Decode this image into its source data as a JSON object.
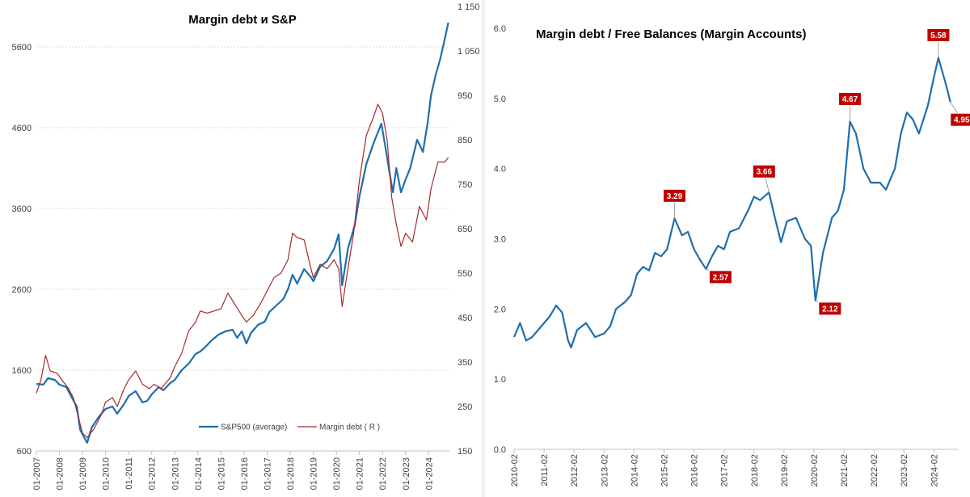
{
  "chart_data": [
    {
      "type": "line",
      "title": "Margin debt и S&P",
      "xlabel": "",
      "ylabel": "",
      "grid": true,
      "legend_position": "bottom-right",
      "x_tick_labels": [
        "01-2007",
        "01-2008",
        "01-2009",
        "01-2010",
        "01-2011",
        "01-2012",
        "01-2013",
        "01-2014",
        "01-2015",
        "01-2016",
        "01-2017",
        "01-2018",
        "01-2019",
        "01-2020",
        "01-2021",
        "01-2022",
        "01-2023",
        "01-2024"
      ],
      "x_range": [
        2007.0,
        2024.9
      ],
      "y_left": {
        "ticks": [
          "600",
          "1600",
          "2600",
          "3600",
          "4600",
          "5600"
        ],
        "range": [
          600,
          6100
        ]
      },
      "y_right": {
        "ticks": [
          "150",
          "250",
          "350",
          "450",
          "550",
          "650",
          "750",
          "850",
          "950",
          "1 050",
          "1 150"
        ],
        "range": [
          150,
          1150
        ]
      },
      "series": [
        {
          "name": "S&P500 (average)",
          "axis": "left",
          "color": "#1f6ead",
          "points": [
            [
              2007.0,
              1430
            ],
            [
              2007.3,
              1420
            ],
            [
              2007.5,
              1500
            ],
            [
              2007.8,
              1480
            ],
            [
              2008.0,
              1420
            ],
            [
              2008.3,
              1390
            ],
            [
              2008.5,
              1280
            ],
            [
              2008.75,
              1150
            ],
            [
              2008.9,
              860
            ],
            [
              2009.2,
              700
            ],
            [
              2009.4,
              890
            ],
            [
              2009.7,
              1020
            ],
            [
              2010.0,
              1120
            ],
            [
              2010.3,
              1150
            ],
            [
              2010.5,
              1060
            ],
            [
              2010.8,
              1180
            ],
            [
              2011.0,
              1280
            ],
            [
              2011.3,
              1340
            ],
            [
              2011.6,
              1200
            ],
            [
              2011.8,
              1220
            ],
            [
              2012.0,
              1300
            ],
            [
              2012.3,
              1390
            ],
            [
              2012.5,
              1350
            ],
            [
              2012.8,
              1440
            ],
            [
              2013.0,
              1480
            ],
            [
              2013.3,
              1600
            ],
            [
              2013.6,
              1680
            ],
            [
              2013.9,
              1800
            ],
            [
              2014.1,
              1830
            ],
            [
              2014.3,
              1880
            ],
            [
              2014.6,
              1970
            ],
            [
              2014.9,
              2040
            ],
            [
              2015.2,
              2080
            ],
            [
              2015.5,
              2100
            ],
            [
              2015.7,
              2000
            ],
            [
              2015.9,
              2080
            ],
            [
              2016.1,
              1930
            ],
            [
              2016.3,
              2060
            ],
            [
              2016.6,
              2160
            ],
            [
              2016.9,
              2200
            ],
            [
              2017.1,
              2320
            ],
            [
              2017.4,
              2400
            ],
            [
              2017.7,
              2480
            ],
            [
              2017.9,
              2600
            ],
            [
              2018.1,
              2780
            ],
            [
              2018.3,
              2670
            ],
            [
              2018.6,
              2850
            ],
            [
              2018.9,
              2750
            ],
            [
              2019.0,
              2700
            ],
            [
              2019.3,
              2880
            ],
            [
              2019.6,
              2950
            ],
            [
              2019.9,
              3100
            ],
            [
              2020.1,
              3280
            ],
            [
              2020.25,
              2650
            ],
            [
              2020.5,
              3100
            ],
            [
              2020.8,
              3400
            ],
            [
              2021.0,
              3750
            ],
            [
              2021.3,
              4150
            ],
            [
              2021.6,
              4400
            ],
            [
              2021.95,
              4650
            ],
            [
              2022.1,
              4400
            ],
            [
              2022.3,
              4050
            ],
            [
              2022.45,
              3800
            ],
            [
              2022.6,
              4100
            ],
            [
              2022.8,
              3800
            ],
            [
              2023.0,
              3960
            ],
            [
              2023.2,
              4100
            ],
            [
              2023.5,
              4450
            ],
            [
              2023.75,
              4300
            ],
            [
              2023.95,
              4650
            ],
            [
              2024.1,
              5000
            ],
            [
              2024.3,
              5250
            ],
            [
              2024.5,
              5450
            ],
            [
              2024.7,
              5700
            ],
            [
              2024.85,
              5900
            ]
          ]
        },
        {
          "name": "Margin debt ( R )",
          "axis": "right",
          "color": "#a52a2a",
          "points": [
            [
              2007.0,
              280
            ],
            [
              2007.2,
              310
            ],
            [
              2007.4,
              365
            ],
            [
              2007.6,
              330
            ],
            [
              2007.9,
              325
            ],
            [
              2008.1,
              310
            ],
            [
              2008.4,
              290
            ],
            [
              2008.6,
              270
            ],
            [
              2008.8,
              230
            ],
            [
              2009.0,
              190
            ],
            [
              2009.2,
              180
            ],
            [
              2009.5,
              200
            ],
            [
              2009.8,
              230
            ],
            [
              2010.0,
              260
            ],
            [
              2010.3,
              270
            ],
            [
              2010.5,
              250
            ],
            [
              2010.8,
              290
            ],
            [
              2011.0,
              310
            ],
            [
              2011.3,
              330
            ],
            [
              2011.6,
              300
            ],
            [
              2011.9,
              290
            ],
            [
              2012.1,
              300
            ],
            [
              2012.4,
              290
            ],
            [
              2012.8,
              315
            ],
            [
              2013.0,
              340
            ],
            [
              2013.3,
              370
            ],
            [
              2013.6,
              420
            ],
            [
              2013.9,
              440
            ],
            [
              2014.1,
              465
            ],
            [
              2014.4,
              460
            ],
            [
              2014.7,
              465
            ],
            [
              2015.0,
              470
            ],
            [
              2015.3,
              505
            ],
            [
              2015.6,
              480
            ],
            [
              2015.9,
              455
            ],
            [
              2016.1,
              440
            ],
            [
              2016.4,
              455
            ],
            [
              2016.7,
              480
            ],
            [
              2017.0,
              510
            ],
            [
              2017.3,
              540
            ],
            [
              2017.6,
              550
            ],
            [
              2017.9,
              580
            ],
            [
              2018.1,
              640
            ],
            [
              2018.3,
              630
            ],
            [
              2018.6,
              625
            ],
            [
              2018.9,
              560
            ],
            [
              2019.0,
              540
            ],
            [
              2019.3,
              570
            ],
            [
              2019.6,
              560
            ],
            [
              2019.9,
              580
            ],
            [
              2020.1,
              560
            ],
            [
              2020.25,
              475
            ],
            [
              2020.5,
              560
            ],
            [
              2020.75,
              640
            ],
            [
              2021.0,
              760
            ],
            [
              2021.3,
              860
            ],
            [
              2021.6,
              900
            ],
            [
              2021.8,
              930
            ],
            [
              2022.0,
              910
            ],
            [
              2022.2,
              850
            ],
            [
              2022.4,
              720
            ],
            [
              2022.6,
              660
            ],
            [
              2022.8,
              610
            ],
            [
              2023.0,
              640
            ],
            [
              2023.3,
              620
            ],
            [
              2023.6,
              700
            ],
            [
              2023.9,
              670
            ],
            [
              2024.1,
              740
            ],
            [
              2024.4,
              800
            ],
            [
              2024.7,
              800
            ],
            [
              2024.85,
              810
            ]
          ]
        }
      ]
    },
    {
      "type": "line",
      "title": "Margin debt / Free Balances (Margin Accounts)",
      "xlabel": "",
      "ylabel": "",
      "grid": false,
      "legend_position": "none",
      "x_tick_labels": [
        "2010-02",
        "2011-02",
        "2012-02",
        "2013-02",
        "2014-02",
        "2015-02",
        "2016-02",
        "2017-02",
        "2018-02",
        "2019-02",
        "2020-02",
        "2021-02",
        "2022-02",
        "2023-02",
        "2024-02"
      ],
      "x_range": [
        2010.1,
        2024.9
      ],
      "y_left": {
        "ticks": [
          "0.0",
          "1.0",
          "2.0",
          "3.0",
          "4.0",
          "5.0",
          "6.0"
        ],
        "range": [
          0,
          6
        ]
      },
      "series": [
        {
          "name": "Margin debt / Free Balances",
          "axis": "left",
          "color": "#1f6ead",
          "points": [
            [
              2010.1,
              1.6
            ],
            [
              2010.3,
              1.8
            ],
            [
              2010.5,
              1.55
            ],
            [
              2010.7,
              1.6
            ],
            [
              2011.0,
              1.75
            ],
            [
              2011.3,
              1.9
            ],
            [
              2011.5,
              2.05
            ],
            [
              2011.7,
              1.95
            ],
            [
              2011.9,
              1.55
            ],
            [
              2012.0,
              1.45
            ],
            [
              2012.2,
              1.7
            ],
            [
              2012.5,
              1.8
            ],
            [
              2012.8,
              1.6
            ],
            [
              2013.1,
              1.65
            ],
            [
              2013.3,
              1.75
            ],
            [
              2013.5,
              2.0
            ],
            [
              2013.8,
              2.1
            ],
            [
              2014.0,
              2.2
            ],
            [
              2014.2,
              2.5
            ],
            [
              2014.4,
              2.6
            ],
            [
              2014.6,
              2.55
            ],
            [
              2014.8,
              2.8
            ],
            [
              2015.0,
              2.75
            ],
            [
              2015.2,
              2.85
            ],
            [
              2015.4,
              3.2
            ],
            [
              2015.45,
              3.29
            ],
            [
              2015.7,
              3.05
            ],
            [
              2015.9,
              3.1
            ],
            [
              2016.1,
              2.85
            ],
            [
              2016.3,
              2.7
            ],
            [
              2016.5,
              2.57
            ],
            [
              2016.7,
              2.75
            ],
            [
              2016.9,
              2.9
            ],
            [
              2017.1,
              2.85
            ],
            [
              2017.3,
              3.1
            ],
            [
              2017.6,
              3.15
            ],
            [
              2017.9,
              3.4
            ],
            [
              2018.1,
              3.6
            ],
            [
              2018.3,
              3.55
            ],
            [
              2018.6,
              3.66
            ],
            [
              2018.8,
              3.3
            ],
            [
              2019.0,
              2.95
            ],
            [
              2019.2,
              3.25
            ],
            [
              2019.5,
              3.3
            ],
            [
              2019.8,
              3.0
            ],
            [
              2020.0,
              2.9
            ],
            [
              2020.15,
              2.12
            ],
            [
              2020.4,
              2.8
            ],
            [
              2020.7,
              3.3
            ],
            [
              2020.9,
              3.4
            ],
            [
              2021.1,
              3.7
            ],
            [
              2021.3,
              4.67
            ],
            [
              2021.5,
              4.5
            ],
            [
              2021.75,
              4.0
            ],
            [
              2022.0,
              3.8
            ],
            [
              2022.3,
              3.8
            ],
            [
              2022.5,
              3.7
            ],
            [
              2022.8,
              4.0
            ],
            [
              2023.0,
              4.5
            ],
            [
              2023.2,
              4.8
            ],
            [
              2023.4,
              4.7
            ],
            [
              2023.6,
              4.5
            ],
            [
              2023.9,
              4.9
            ],
            [
              2024.1,
              5.3
            ],
            [
              2024.25,
              5.58
            ],
            [
              2024.5,
              5.2
            ],
            [
              2024.65,
              4.95
            ]
          ]
        }
      ],
      "annotations": [
        {
          "label": "3.29",
          "x": 2015.45,
          "y": 3.29,
          "placement": "above"
        },
        {
          "label": "2.57",
          "x": 2016.5,
          "y": 2.57,
          "placement": "right"
        },
        {
          "label": "3.66",
          "x": 2018.6,
          "y": 3.66,
          "placement": "above-left"
        },
        {
          "label": "2.12",
          "x": 2020.15,
          "y": 2.12,
          "placement": "right"
        },
        {
          "label": "4.67",
          "x": 2021.3,
          "y": 4.67,
          "placement": "above"
        },
        {
          "label": "5.58",
          "x": 2024.25,
          "y": 5.58,
          "placement": "above"
        },
        {
          "label": "4.95",
          "x": 2024.65,
          "y": 4.95,
          "placement": "below-right"
        }
      ]
    }
  ]
}
